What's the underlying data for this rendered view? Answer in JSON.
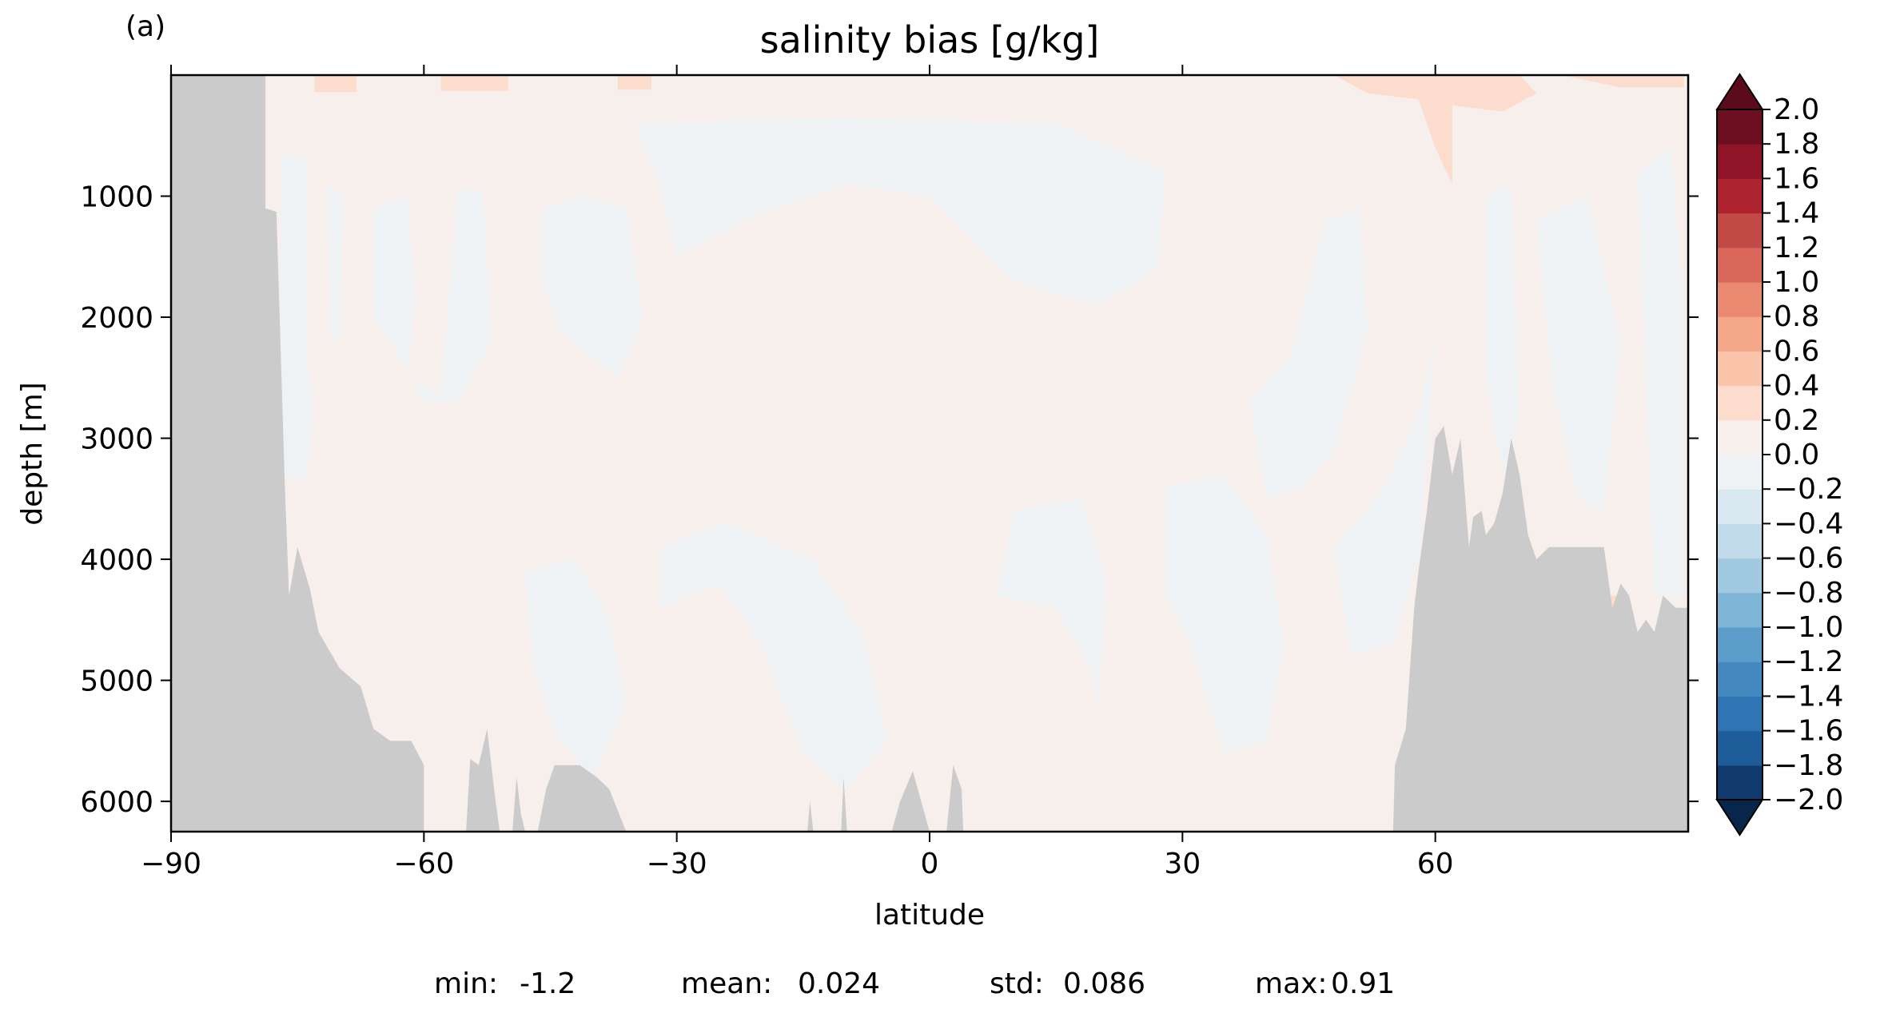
{
  "panel_label": "(a)",
  "colors": {
    "land": "#cbcbcb",
    "background": "#ffffff",
    "positive_light": "#f7efec",
    "negative_light": "#eef2f4",
    "positive_med": "#fbdccd"
  },
  "chart_data": {
    "type": "heatmap",
    "title": "salinity bias [g/kg]",
    "xlabel": "latitude",
    "ylabel": "depth [m]",
    "xlim": [
      -90,
      90
    ],
    "ylim": [
      6250,
      0
    ],
    "y_inverted": true,
    "x_ticks": [
      -90,
      -60,
      -30,
      0,
      30,
      60
    ],
    "x_tick_labels": [
      "−90",
      "−60",
      "−30",
      "0",
      "30",
      "60"
    ],
    "y_ticks": [
      1000,
      2000,
      3000,
      4000,
      5000,
      6000
    ],
    "y_tick_labels": [
      "1000",
      "2000",
      "3000",
      "4000",
      "5000",
      "6000"
    ],
    "grid": false,
    "land_mask_color": "#cbcbcb",
    "land_bathymetry": {
      "south": [
        [
          -90,
          0
        ],
        [
          -78.8,
          0
        ],
        [
          -78.8,
          1100
        ],
        [
          -77.5,
          1130
        ],
        [
          -76.5,
          3400
        ],
        [
          -76,
          4300
        ],
        [
          -75,
          3900
        ],
        [
          -73.5,
          4250
        ],
        [
          -72.5,
          4600
        ],
        [
          -70,
          4900
        ],
        [
          -67.5,
          5050
        ],
        [
          -66,
          5400
        ],
        [
          -64,
          5500
        ],
        [
          -61.5,
          5500
        ],
        [
          -60,
          5700
        ],
        [
          -60,
          6250
        ],
        [
          -90,
          6250
        ]
      ],
      "ridges": [
        [
          [
            -55,
            6250
          ],
          [
            -54.5,
            5650
          ],
          [
            -53.5,
            5700
          ],
          [
            -52.5,
            5400
          ],
          [
            -51.5,
            6000
          ],
          [
            -51,
            6250
          ]
        ],
        [
          [
            -49.5,
            6250
          ],
          [
            -49,
            5800
          ],
          [
            -48.5,
            6100
          ],
          [
            -48,
            6250
          ]
        ],
        [
          [
            -46.5,
            6250
          ],
          [
            -45.5,
            5900
          ],
          [
            -44.5,
            5700
          ],
          [
            -41.5,
            5700
          ],
          [
            -39.5,
            5800
          ],
          [
            -38,
            5900
          ],
          [
            -36,
            6250
          ]
        ],
        [
          [
            -14.5,
            6250
          ],
          [
            -14.2,
            6000
          ],
          [
            -13.8,
            6250
          ]
        ],
        [
          [
            -10.5,
            6250
          ],
          [
            -10.2,
            5800
          ],
          [
            -9.8,
            6250
          ]
        ],
        [
          [
            -4.5,
            6250
          ],
          [
            -3.5,
            6000
          ],
          [
            -2,
            5750
          ],
          [
            -1,
            6000
          ],
          [
            0,
            6250
          ]
        ],
        [
          [
            2,
            6250
          ],
          [
            2.8,
            5700
          ],
          [
            3.8,
            5900
          ],
          [
            4,
            6250
          ]
        ]
      ],
      "north": [
        [
          55,
          6250
        ],
        [
          55.2,
          5700
        ],
        [
          56.5,
          5400
        ],
        [
          57.5,
          4400
        ],
        [
          58,
          4100
        ],
        [
          59,
          3600
        ],
        [
          60,
          3000
        ],
        [
          61,
          2900
        ],
        [
          62,
          3300
        ],
        [
          63,
          3000
        ],
        [
          64,
          3900
        ],
        [
          64.5,
          3650
        ],
        [
          65.5,
          3600
        ],
        [
          66,
          3800
        ],
        [
          67,
          3700
        ],
        [
          68,
          3450
        ],
        [
          69,
          3000
        ],
        [
          70,
          3300
        ],
        [
          71,
          3800
        ],
        [
          72,
          4000
        ],
        [
          73.5,
          3900
        ],
        [
          76,
          3900
        ],
        [
          78,
          3900
        ],
        [
          80,
          3900
        ],
        [
          81,
          4400
        ],
        [
          82,
          4200
        ],
        [
          83,
          4300
        ],
        [
          84,
          4600
        ],
        [
          85,
          4500
        ],
        [
          86,
          4600
        ],
        [
          87,
          4300
        ],
        [
          88.5,
          4400
        ],
        [
          90,
          4400
        ],
        [
          90,
          6250
        ]
      ]
    },
    "colorbar": {
      "levels": [
        -2.0,
        -1.8,
        -1.6,
        -1.4,
        -1.2,
        -1.0,
        -0.8,
        -0.6,
        -0.4,
        -0.2,
        0.0,
        0.2,
        0.4,
        0.6,
        0.8,
        1.0,
        1.2,
        1.4,
        1.6,
        1.8,
        2.0
      ],
      "tick_labels": [
        "2.0",
        "1.8",
        "1.6",
        "1.4",
        "1.2",
        "1.0",
        "0.8",
        "0.6",
        "0.4",
        "0.2",
        "0.0",
        "−0.2",
        "−0.4",
        "−0.6",
        "−0.8",
        "−1.0",
        "−1.2",
        "−1.4",
        "−1.6",
        "−1.8",
        "−2.0"
      ],
      "colors": [
        "#113a6d",
        "#1e5d99",
        "#2f75b4",
        "#4389c0",
        "#5c9dcb",
        "#7eb5d6",
        "#a1c9e1",
        "#c0dae9",
        "#d8e7f0",
        "#eef2f4",
        "#f7efec",
        "#fbdccd",
        "#f9c4a9",
        "#f5a889",
        "#e98970",
        "#d9675a",
        "#c24a46",
        "#ad2330",
        "#8f1427",
        "#6e0f21"
      ],
      "extend": "both",
      "under_color": "#08264a",
      "over_color": "#5c0b1c"
    },
    "field_regions": {
      "negative_patches": [
        [
          [
            -77,
            650
          ],
          [
            -74,
            700
          ],
          [
            -74,
            2300
          ],
          [
            -73,
            2750
          ],
          [
            -74,
            3350
          ],
          [
            -77,
            3300
          ]
        ],
        [
          [
            -71.5,
            900
          ],
          [
            -69.5,
            1000
          ],
          [
            -70,
            2200
          ],
          [
            -71,
            2200
          ]
        ],
        [
          [
            -66,
            1100
          ],
          [
            -62,
            1000
          ],
          [
            -61,
            1800
          ],
          [
            -62,
            2500
          ],
          [
            -58,
            2650
          ],
          [
            -57,
            1800
          ],
          [
            -56,
            950
          ],
          [
            -53,
            950
          ],
          [
            -52,
            2200
          ],
          [
            -56,
            2700
          ],
          [
            -60,
            2700
          ],
          [
            -63,
            2300
          ],
          [
            -66,
            2000
          ]
        ],
        [
          [
            -46,
            1100
          ],
          [
            -41,
            1000
          ],
          [
            -36,
            1100
          ],
          [
            -34,
            2000
          ],
          [
            -37,
            2500
          ],
          [
            -44,
            2100
          ],
          [
            -46,
            1700
          ]
        ],
        [
          [
            -35,
            400
          ],
          [
            -10,
            350
          ],
          [
            15,
            400
          ],
          [
            28,
            800
          ],
          [
            27,
            1600
          ],
          [
            20,
            1900
          ],
          [
            10,
            1700
          ],
          [
            0,
            1000
          ],
          [
            -10,
            900
          ],
          [
            -22,
            1200
          ],
          [
            -30,
            1500
          ],
          [
            -32,
            900
          ]
        ],
        [
          [
            -48,
            4100
          ],
          [
            -42,
            4000
          ],
          [
            -38,
            4500
          ],
          [
            -36,
            5200
          ],
          [
            -40,
            5800
          ],
          [
            -44,
            5500
          ],
          [
            -47,
            4900
          ]
        ],
        [
          [
            -32,
            4400
          ],
          [
            -25,
            4200
          ],
          [
            -20,
            4700
          ],
          [
            -15,
            5600
          ],
          [
            -10,
            5900
          ],
          [
            -5,
            5500
          ],
          [
            -8,
            4600
          ],
          [
            -14,
            4000
          ],
          [
            -24,
            3700
          ],
          [
            -32,
            3900
          ]
        ],
        [
          [
            10,
            3600
          ],
          [
            18,
            3500
          ],
          [
            21,
            4200
          ],
          [
            20,
            5200
          ],
          [
            19,
            4900
          ],
          [
            15,
            4400
          ],
          [
            8,
            4300
          ]
        ],
        [
          [
            28,
            3400
          ],
          [
            35,
            3300
          ],
          [
            40,
            3800
          ],
          [
            42,
            4700
          ],
          [
            40,
            5500
          ],
          [
            35,
            5600
          ],
          [
            31,
            4700
          ],
          [
            28,
            4300
          ]
        ],
        [
          [
            38,
            2700
          ],
          [
            43,
            2300
          ],
          [
            47,
            1200
          ],
          [
            51,
            1100
          ],
          [
            52,
            2100
          ],
          [
            48,
            3100
          ],
          [
            44,
            3400
          ],
          [
            40,
            3500
          ]
        ],
        [
          [
            48,
            3900
          ],
          [
            54,
            3400
          ],
          [
            58,
            2800
          ],
          [
            60,
            2200
          ],
          [
            58,
            4000
          ],
          [
            55,
            4700
          ],
          [
            50,
            4800
          ]
        ],
        [
          [
            66,
            1000
          ],
          [
            69,
            900
          ],
          [
            70,
            2800
          ],
          [
            68,
            3300
          ],
          [
            66,
            2500
          ]
        ],
        [
          [
            72,
            1200
          ],
          [
            78,
            1000
          ],
          [
            82,
            2200
          ],
          [
            80,
            3600
          ],
          [
            77,
            3500
          ],
          [
            74,
            2600
          ]
        ],
        [
          [
            84,
            800
          ],
          [
            88,
            600
          ],
          [
            89.5,
            2000
          ],
          [
            89.5,
            4300
          ],
          [
            86,
            4300
          ],
          [
            85,
            2600
          ]
        ]
      ],
      "positive_strong_patches": [
        [
          [
            48,
            0
          ],
          [
            70,
            0
          ],
          [
            72,
            150
          ],
          [
            68,
            300
          ],
          [
            62,
            250
          ],
          [
            62,
            900
          ],
          [
            60,
            600
          ],
          [
            58,
            200
          ],
          [
            52,
            150
          ]
        ],
        [
          [
            75,
            0
          ],
          [
            89.5,
            0
          ],
          [
            89.5,
            100
          ],
          [
            82,
            100
          ]
        ],
        [
          [
            -73,
            0
          ],
          [
            -68,
            0
          ],
          [
            -68,
            140
          ],
          [
            -73,
            140
          ]
        ],
        [
          [
            -58,
            0
          ],
          [
            -50,
            0
          ],
          [
            -50,
            130
          ],
          [
            -58,
            130
          ]
        ],
        [
          [
            -37,
            0
          ],
          [
            -33,
            0
          ],
          [
            -33,
            120
          ],
          [
            -37,
            120
          ]
        ],
        [
          [
            80.5,
            4300
          ],
          [
            81.5,
            4300
          ],
          [
            81.3,
            4500
          ],
          [
            80.7,
            4500
          ]
        ]
      ]
    },
    "stats": [
      {
        "label": "min:",
        "value": "-1.2"
      },
      {
        "label": "mean:",
        "value": "0.024"
      },
      {
        "label": "std:",
        "value": "0.086"
      },
      {
        "label": "max:",
        "value": "0.91"
      }
    ]
  }
}
